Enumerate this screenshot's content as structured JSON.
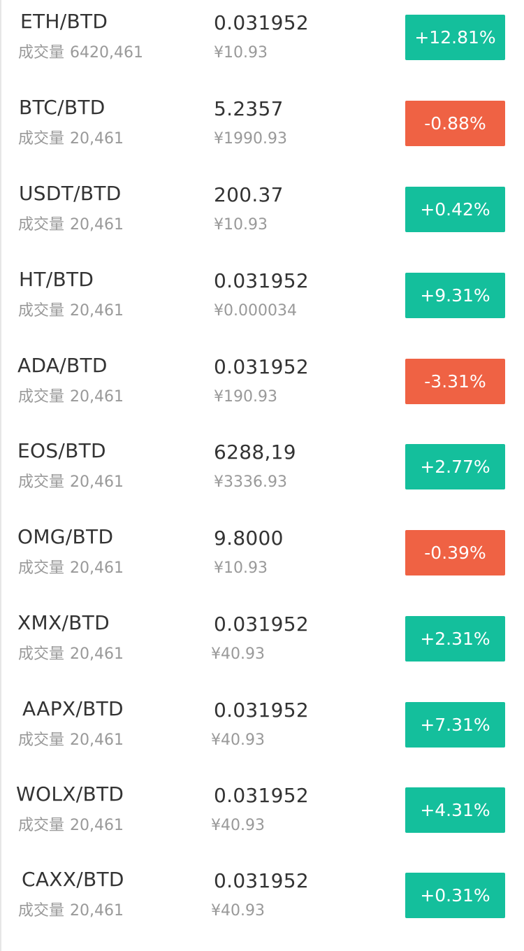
{
  "market": {
    "volume_label": "成交量",
    "rows": [
      {
        "pair": "ETH/BTD",
        "volume": "6420,461",
        "price": "0.031952",
        "fiat": "¥10.93",
        "change": "+12.81%",
        "direction": "up"
      },
      {
        "pair": "BTC/BTD",
        "volume": "20,461",
        "price": "5.2357",
        "fiat": "¥1990.93",
        "change": "-0.88%",
        "direction": "down"
      },
      {
        "pair": "USDT/BTD",
        "volume": "20,461",
        "price": "200.37",
        "fiat": "¥10.93",
        "change": "+0.42%",
        "direction": "up"
      },
      {
        "pair": "HT/BTD",
        "volume": "20,461",
        "price": "0.031952",
        "fiat": "¥0.000034",
        "change": "+9.31%",
        "direction": "up"
      },
      {
        "pair": "ADA/BTD",
        "volume": "20,461",
        "price": "0.031952",
        "fiat": "¥190.93",
        "change": "-3.31%",
        "direction": "down"
      },
      {
        "pair": "EOS/BTD",
        "volume": "20,461",
        "price": "6288,19",
        "fiat": "¥3336.93",
        "change": "+2.77%",
        "direction": "up"
      },
      {
        "pair": "OMG/BTD",
        "volume": "20,461",
        "price": "9.8000",
        "fiat": "¥10.93",
        "change": "-0.39%",
        "direction": "down"
      },
      {
        "pair": "XMX/BTD",
        "volume": "20,461",
        "price": "0.031952",
        "fiat": "¥40.93",
        "change": "+2.31%",
        "direction": "up"
      },
      {
        "pair": "AAPX/BTD",
        "volume": "20,461",
        "price": "0.031952",
        "fiat": "¥40.93",
        "change": "+7.31%",
        "direction": "up"
      },
      {
        "pair": "WOLX/BTD",
        "volume": "20,461",
        "price": "0.031952",
        "fiat": "¥40.93",
        "change": "+4.31%",
        "direction": "up"
      },
      {
        "pair": "CAXX/BTD",
        "volume": "20,461",
        "price": "0.031952",
        "fiat": "¥40.93",
        "change": "+0.31%",
        "direction": "up"
      }
    ]
  },
  "colors": {
    "up": "#14bf9c",
    "down": "#ef6244",
    "primary_text": "#333333",
    "secondary_text": "#999999"
  }
}
